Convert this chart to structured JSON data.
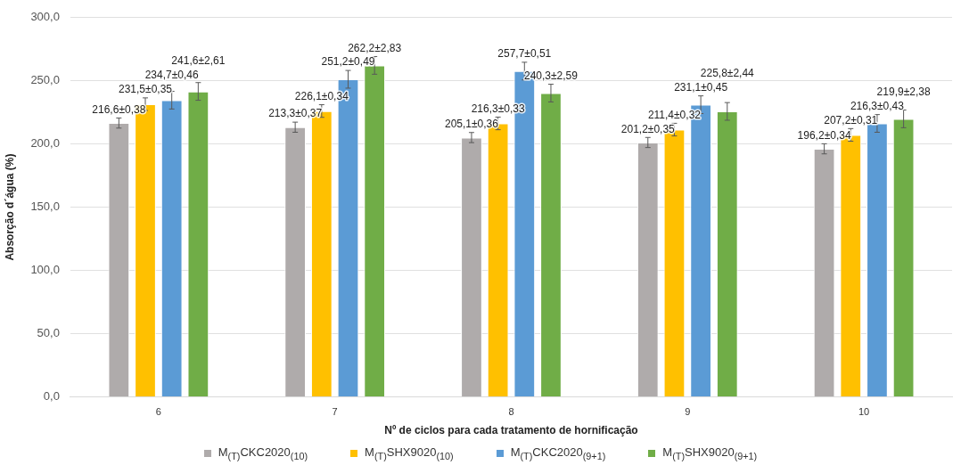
{
  "chart_data": {
    "type": "bar",
    "xlabel": "Nº de ciclos para cada tratamento de hornificação",
    "ylabel": "Absorção d´água (%)",
    "categories": [
      "6",
      "7",
      "8",
      "9",
      "10"
    ],
    "series": [
      {
        "name": "M$_{(T)}$CKC2020$_{(10)}$",
        "color": "#afabab",
        "values": [
          216.6,
          213.3,
          205.1,
          201.2,
          196.2
        ],
        "errors": [
          4,
          4,
          4,
          4,
          4
        ],
        "value_labels": [
          "216,6±0,38",
          "213,3±0,37",
          "205,1±0,36",
          "201,2±0,35",
          "196,2±0,34"
        ]
      },
      {
        "name": "M$_{(T)}$SHX9020$_{(10)}$",
        "color": "#ffc000",
        "values": [
          231.5,
          226.1,
          216.3,
          211.4,
          207.2
        ],
        "errors": [
          5,
          5,
          5,
          5,
          5
        ],
        "value_labels": [
          "231,5±0,35",
          "226,1±0,34",
          "216,3±0,33",
          "211,4±0,32",
          "207,2±0,31"
        ]
      },
      {
        "name": "M$_{(T)}$CKC2020$_{(9+1)}$",
        "color": "#5b9bd5",
        "values": [
          234.7,
          251.2,
          257.7,
          231.1,
          216.3
        ],
        "errors": [
          7,
          7,
          7,
          7,
          7
        ],
        "value_labels": [
          "234,7±0,46",
          "251,2±0,49",
          "257,7±0,51",
          "231,1±0,45",
          "216,3±0,43"
        ]
      },
      {
        "name": "M$_{(T)}$SHX9020$_{(9+1)}$",
        "color": "#70ad47",
        "values": [
          241.6,
          262.2,
          240.3,
          225.8,
          219.9
        ],
        "errors": [
          7,
          7,
          7,
          7,
          7
        ],
        "value_labels": [
          "241,6±2,61",
          "262,2±2,83",
          "240,3±2,59",
          "225,8±2,44",
          "219,9±2,38"
        ]
      }
    ],
    "ylim": [
      0,
      300
    ],
    "yticks": [
      {
        "value": 0,
        "label": "0,0"
      },
      {
        "value": 50,
        "label": "50,0"
      },
      {
        "value": 100,
        "label": "100,0"
      },
      {
        "value": 150,
        "label": "150,0"
      },
      {
        "value": 200,
        "label": "200,0"
      },
      {
        "value": 250,
        "label": "250,0"
      },
      {
        "value": 300,
        "label": "300,0"
      }
    ],
    "grid": "y",
    "legend": "bottom"
  }
}
